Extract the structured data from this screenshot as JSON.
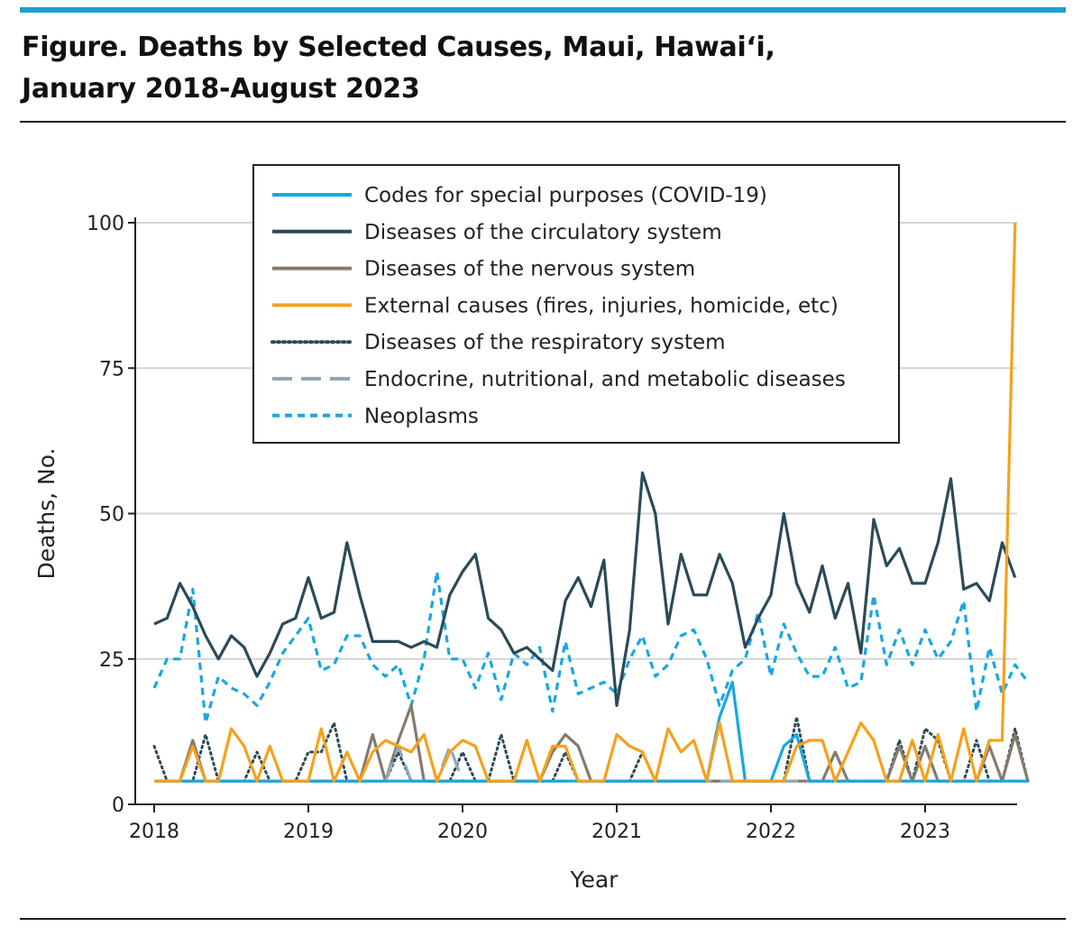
{
  "header": {
    "title_line1": "Figure. Deaths by Selected Causes, Maui, Hawai‘i,",
    "title_line2": "January 2018-August 2023"
  },
  "chart_data": {
    "type": "line",
    "xlabel": "Year",
    "ylabel": "Deaths, No.",
    "xlim": [
      0,
      67
    ],
    "ylim": [
      0,
      100
    ],
    "x_ticks": [
      {
        "x": 0,
        "label": "2018"
      },
      {
        "x": 12,
        "label": "2019"
      },
      {
        "x": 24,
        "label": "2020"
      },
      {
        "x": 36,
        "label": "2021"
      },
      {
        "x": 48,
        "label": "2022"
      },
      {
        "x": 60,
        "label": "2023"
      }
    ],
    "y_ticks": [
      {
        "y": 0,
        "label": "0"
      },
      {
        "y": 25,
        "label": "25"
      },
      {
        "y": 50,
        "label": "50"
      },
      {
        "y": 75,
        "label": "75"
      },
      {
        "y": 100,
        "label": "100"
      }
    ],
    "grid": "horizontal",
    "legend_position": "top-center",
    "x_unit": "month index from January 2018",
    "series": [
      {
        "name": "Neoplasms",
        "color": "#19a7e0",
        "style": "dashed",
        "values": [
          20,
          25,
          25,
          37,
          14,
          22,
          20,
          19,
          17,
          21,
          26,
          29,
          32,
          23,
          24,
          29,
          29,
          24,
          22,
          24,
          17,
          25,
          40,
          25,
          25,
          20,
          26,
          18,
          26,
          24,
          27,
          16,
          28,
          19,
          20,
          21,
          19,
          25,
          29,
          22,
          24,
          29,
          30,
          25,
          17,
          23,
          25,
          33,
          22,
          31,
          26,
          22,
          22,
          27,
          20,
          21,
          36,
          24,
          30,
          24,
          30,
          25,
          28,
          35,
          16,
          27,
          19,
          24,
          21
        ]
      },
      {
        "name": "Diseases of the respiratory system",
        "color": "#2b4a57",
        "style": "dotted",
        "values": [
          10,
          4,
          4,
          4,
          12,
          4,
          4,
          4,
          9,
          4,
          4,
          4,
          9,
          9,
          14,
          4,
          4,
          4,
          4,
          9,
          4,
          4,
          4,
          4,
          9,
          4,
          4,
          12,
          4,
          4,
          4,
          4,
          9,
          4,
          4,
          4,
          4,
          4,
          9,
          4,
          4,
          4,
          4,
          4,
          4,
          4,
          4,
          4,
          4,
          4,
          15,
          4,
          4,
          4,
          4,
          4,
          4,
          4,
          11,
          4,
          13,
          11,
          4,
          4,
          11,
          4,
          4,
          13,
          4
        ]
      },
      {
        "name": "Diseases of the nervous system",
        "color": "#857a6d",
        "style": "solid",
        "values": [
          4,
          4,
          4,
          11,
          4,
          4,
          4,
          4,
          4,
          4,
          4,
          4,
          4,
          4,
          4,
          4,
          4,
          12,
          4,
          11,
          17,
          4,
          4,
          4,
          4,
          4,
          4,
          4,
          4,
          4,
          4,
          9,
          12,
          10,
          4,
          4,
          4,
          4,
          4,
          4,
          4,
          4,
          4,
          4,
          4,
          4,
          4,
          4,
          4,
          4,
          4,
          4,
          4,
          9,
          4,
          4,
          4,
          4,
          10,
          4,
          10,
          4,
          4,
          4,
          4,
          10,
          4,
          12,
          4
        ]
      },
      {
        "name": "Endocrine, nutritional, and metabolic diseases",
        "color": "#8fa9b8",
        "style": "longdash",
        "values": [
          4,
          4,
          4,
          4,
          4,
          4,
          4,
          4,
          4,
          4,
          4,
          4,
          4,
          4,
          4,
          4,
          4,
          4,
          4,
          10,
          4,
          4,
          4,
          10,
          4,
          4,
          4,
          4,
          4,
          4,
          4,
          4,
          4,
          4,
          4,
          4,
          4,
          4,
          4,
          4,
          4,
          4,
          4,
          4,
          4,
          4,
          4,
          4,
          4,
          4,
          4,
          4,
          4,
          4,
          4,
          4,
          4,
          4,
          4,
          4,
          4,
          4,
          4,
          4,
          4,
          4,
          4,
          4,
          4
        ]
      },
      {
        "name": "Diseases of the circulatory system",
        "color": "#2b4a57",
        "style": "solid",
        "values": [
          31,
          32,
          38,
          34,
          29,
          25,
          29,
          27,
          22,
          26,
          31,
          32,
          39,
          32,
          33,
          45,
          36,
          28,
          28,
          28,
          27,
          28,
          27,
          36,
          40,
          43,
          32,
          30,
          26,
          27,
          25,
          23,
          35,
          39,
          34,
          42,
          17,
          30,
          57,
          50,
          31,
          43,
          36,
          36,
          43,
          38,
          27,
          32,
          36,
          50,
          38,
          33,
          41,
          32,
          38,
          26,
          49,
          41,
          44,
          38,
          38,
          45,
          56,
          37,
          38,
          35,
          45,
          39
        ]
      },
      {
        "name": "Codes for special purposes (COVID-19)",
        "color": "#19a7e0",
        "style": "solid",
        "values": [
          4,
          4,
          4,
          4,
          4,
          4,
          4,
          4,
          4,
          4,
          4,
          4,
          4,
          4,
          4,
          4,
          4,
          4,
          4,
          4,
          4,
          4,
          4,
          4,
          4,
          4,
          4,
          4,
          4,
          4,
          4,
          4,
          4,
          4,
          4,
          4,
          4,
          4,
          4,
          4,
          4,
          4,
          4,
          4,
          15,
          21,
          4,
          4,
          4,
          10,
          12,
          4,
          4,
          4,
          4,
          4,
          4,
          4,
          4,
          4,
          4,
          4,
          4,
          4,
          4,
          4,
          4,
          4,
          4
        ]
      },
      {
        "name": "External causes (fires, injuries, homicide, etc)",
        "color": "#f5a11c",
        "style": "solid",
        "values": [
          4,
          4,
          4,
          10,
          4,
          4,
          13,
          10,
          4,
          10,
          4,
          4,
          4,
          13,
          4,
          9,
          4,
          9,
          11,
          10,
          9,
          12,
          4,
          9,
          11,
          10,
          4,
          4,
          4,
          11,
          4,
          10,
          10,
          4,
          4,
          4,
          12,
          10,
          9,
          4,
          13,
          9,
          11,
          4,
          14,
          4,
          4,
          4,
          4,
          4,
          10,
          11,
          11,
          4,
          9,
          14,
          11,
          4,
          4,
          11,
          4,
          12,
          4,
          13,
          4,
          11,
          11,
          100
        ]
      }
    ],
    "legend": [
      "Codes for special purposes (COVID-19)",
      "Diseases of the circulatory system",
      "Diseases of the nervous system",
      "External causes (fires, injuries, homicide, etc)",
      "Diseases of the respiratory system",
      "Endocrine, nutritional, and metabolic diseases",
      "Neoplasms"
    ]
  }
}
